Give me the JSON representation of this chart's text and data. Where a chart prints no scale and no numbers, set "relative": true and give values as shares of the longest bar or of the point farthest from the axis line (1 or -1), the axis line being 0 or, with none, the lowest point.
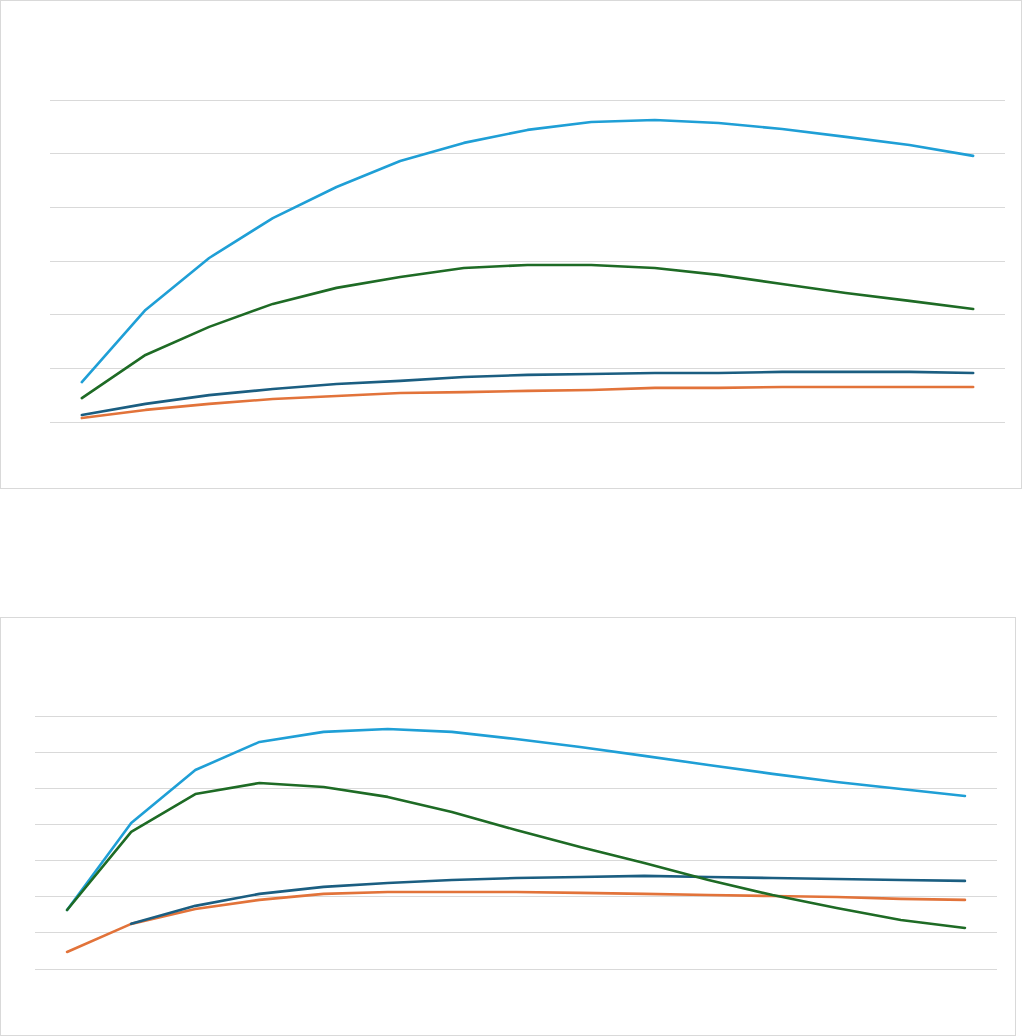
{
  "chart_data": [
    {
      "type": "line",
      "relative": true,
      "grid": "y",
      "tick_labels": false,
      "categories": [
        null,
        null,
        null,
        null,
        null,
        null,
        null,
        null,
        null,
        null,
        null,
        null,
        null,
        null,
        null
      ],
      "series": [
        {
          "color": "#e2733a",
          "values": [
            0.013,
            0.04,
            0.06,
            0.076,
            0.086,
            0.096,
            0.099,
            0.103,
            0.106,
            0.113,
            0.113,
            0.116,
            0.116,
            0.116,
            0.116
          ]
        },
        {
          "color": "#1b5e81",
          "values": [
            0.023,
            0.06,
            0.089,
            0.109,
            0.126,
            0.136,
            0.149,
            0.156,
            0.159,
            0.162,
            0.162,
            0.166,
            0.166,
            0.166,
            0.162
          ]
        },
        {
          "color": "#1f9fd6",
          "values": [
            0.132,
            0.371,
            0.543,
            0.675,
            0.778,
            0.864,
            0.924,
            0.967,
            0.993,
            1,
            0.99,
            0.97,
            0.944,
            0.917,
            0.881
          ]
        },
        {
          "color": "#1e6b25",
          "values": [
            0.079,
            0.222,
            0.315,
            0.391,
            0.444,
            0.48,
            0.51,
            0.52,
            0.52,
            0.51,
            0.487,
            0.457,
            0.427,
            0.401,
            0.374
          ]
        }
      ]
    },
    {
      "type": "line",
      "relative": true,
      "grid": "y",
      "tick_labels": false,
      "categories": [
        null,
        null,
        null,
        null,
        null,
        null,
        null,
        null,
        null,
        null,
        null,
        null,
        null,
        null,
        null
      ],
      "series": [
        {
          "color": "#e2733a",
          "values": [
            0.071,
            0.188,
            0.25,
            0.288,
            0.313,
            0.321,
            0.321,
            0.321,
            0.317,
            0.313,
            0.308,
            0.304,
            0.3,
            0.292,
            0.288
          ]
        },
        {
          "color": "#1b5e81",
          "values": [
            null,
            0.188,
            0.263,
            0.313,
            0.342,
            0.358,
            0.371,
            0.379,
            0.383,
            0.388,
            0.383,
            0.379,
            0.375,
            0.371,
            0.367
          ]
        },
        {
          "color": "#1f9fd6",
          "values": [
            0.246,
            0.608,
            0.829,
            0.946,
            0.988,
            1,
            0.988,
            0.958,
            0.925,
            0.888,
            0.85,
            0.813,
            0.779,
            0.75,
            0.721
          ]
        },
        {
          "color": "#1e6b25",
          "values": [
            0.246,
            0.571,
            0.729,
            0.775,
            0.758,
            0.717,
            0.654,
            0.579,
            0.508,
            0.442,
            0.371,
            0.308,
            0.254,
            0.204,
            0.171
          ]
        }
      ]
    }
  ]
}
